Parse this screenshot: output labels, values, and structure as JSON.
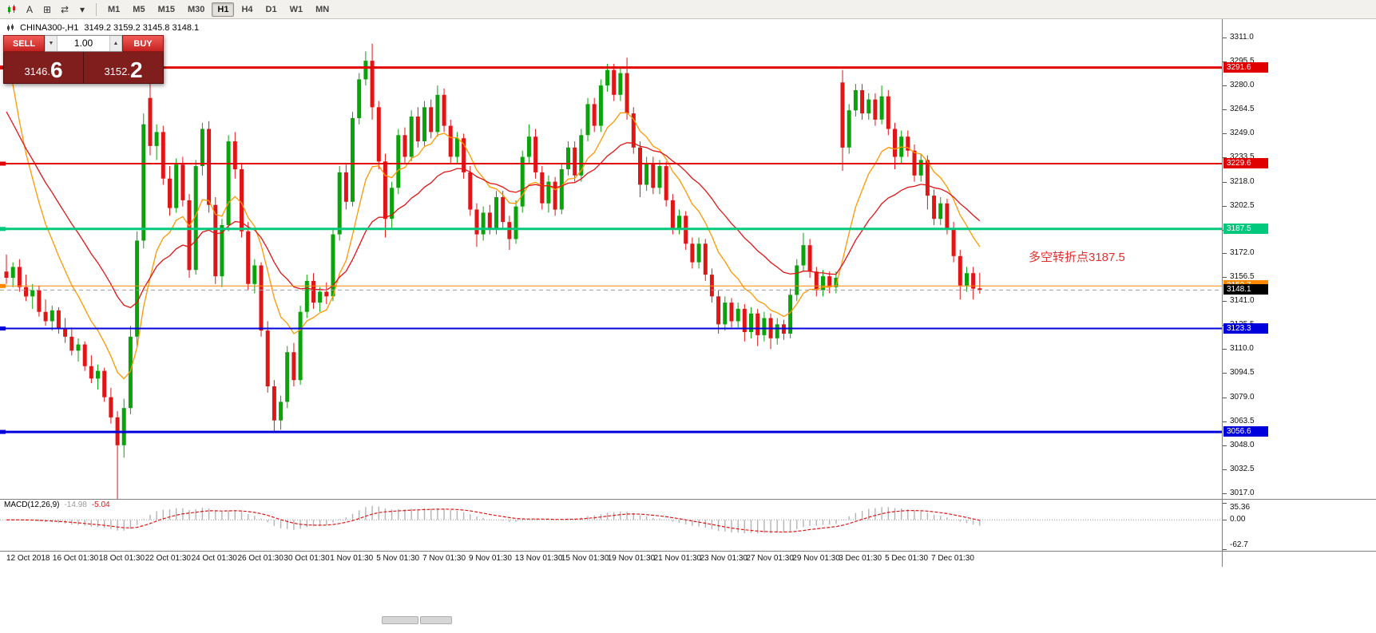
{
  "toolbar": {
    "icons": [
      {
        "name": "new-chart-icon",
        "type": "candles"
      },
      {
        "name": "text-tool-icon",
        "glyph": "A"
      },
      {
        "name": "grid-icon",
        "glyph": "⊞"
      },
      {
        "name": "cycle-icon",
        "glyph": "⇄"
      },
      {
        "name": "dropdown-arrow-icon",
        "glyph": "▾"
      }
    ],
    "timeframes": [
      {
        "label": "M1",
        "active": false
      },
      {
        "label": "M5",
        "active": false
      },
      {
        "label": "M15",
        "active": false
      },
      {
        "label": "M30",
        "active": false
      },
      {
        "label": "H1",
        "active": true
      },
      {
        "label": "H4",
        "active": false
      },
      {
        "label": "D1",
        "active": false
      },
      {
        "label": "W1",
        "active": false
      },
      {
        "label": "MN",
        "active": false
      }
    ]
  },
  "chart": {
    "header": {
      "symbol_period": "CHINA300-,H1",
      "ohlc": "3149.2 3159.2 3145.8 3148.1"
    },
    "trade_panel": {
      "sell_label": "SELL",
      "buy_label": "BUY",
      "volume": "1.00",
      "volume_down_glyph": "▼",
      "volume_up_glyph": "▲",
      "sell_price_main": "3146.",
      "sell_price_pip": "6",
      "buy_price_main": "3152.",
      "buy_price_pip": "2",
      "panel_color": "#801d1d",
      "button_color": "#c42222"
    },
    "annotation": {
      "text": "多空转折点3187.5",
      "color": "#e03030"
    },
    "price_axis": {
      "ticks": [
        "3311.0",
        "3295.5",
        "3280.0",
        "3264.5",
        "3249.0",
        "3233.5",
        "3218.0",
        "3202.5",
        "3187.0",
        "3172.0",
        "3156.5",
        "3141.0",
        "3125.5",
        "3110.0",
        "3094.5",
        "3079.0",
        "3063.5",
        "3048.0",
        "3032.5",
        "3017.0"
      ]
    },
    "hlines": [
      {
        "name": "resistance-line-upper",
        "price": 3291.6,
        "color": "#e00000",
        "width": 3,
        "badge": "3291.6"
      },
      {
        "name": "resistance-line-lower",
        "price": 3229.6,
        "color": "#e00000",
        "width": 2,
        "badge": "3229.6"
      },
      {
        "name": "pivot-line-green",
        "price": 3187.5,
        "color": "#00c87d",
        "width": 3,
        "badge": "3187.5"
      },
      {
        "name": "level-line-orange",
        "price": 3150.7,
        "color": "#ff8800",
        "width": 1,
        "badge": "3150.7"
      },
      {
        "name": "support-line-upper",
        "price": 3123.3,
        "color": "#0000dd",
        "width": 2,
        "badge": "3123.3"
      },
      {
        "name": "support-line-lower",
        "price": 3056.6,
        "color": "#0000dd",
        "width": 3,
        "badge": "3056.6"
      },
      {
        "name": "bid-price-line",
        "price": 3148.1,
        "color": "#a0a0a0",
        "width": 1,
        "style": "dashed",
        "badge": "3148.1",
        "badge_color": "#000000"
      }
    ],
    "time_axis": {
      "labels": [
        "12 Oct 2018",
        "16 Oct 01:30",
        "18 Oct 01:30",
        "22 Oct 01:30",
        "24 Oct 01:30",
        "26 Oct 01:30",
        "30 Oct 01:30",
        "1 Nov 01:30",
        "5 Nov 01:30",
        "7 Nov 01:30",
        "9 Nov 01:30",
        "13 Nov 01:30",
        "15 Nov 01:30",
        "19 Nov 01:30",
        "21 Nov 01:30",
        "23 Nov 01:30",
        "27 Nov 01:30",
        "29 Nov 01:30",
        "3 Dec 01:30",
        "5 Dec 01:30",
        "7 Dec 01:30"
      ]
    }
  },
  "macd": {
    "title": "MACD(12,26,9)",
    "value": "-14.98",
    "signal": "-5.04",
    "axis_ticks": [
      "35.36",
      "0.00",
      "-62.7"
    ],
    "histogram_color": "#b4b4b4",
    "signal_color": "#e01515"
  },
  "chart_data": {
    "type": "candlestick",
    "symbol": "CHINA300-",
    "period": "H1",
    "last_ohlc": {
      "open": 3149.2,
      "high": 3159.2,
      "low": 3145.8,
      "close": 3148.1
    },
    "y_axis_range": [
      3013.4,
      3322.8
    ],
    "up_color": "#0aa30a",
    "down_color": "#e01515",
    "candles": [
      [
        3160,
        3171,
        3152,
        3156
      ],
      [
        3156,
        3166,
        3150,
        3163
      ],
      [
        3163,
        3168,
        3147,
        3150
      ],
      [
        3150,
        3158,
        3141,
        3144
      ],
      [
        3144,
        3152,
        3136,
        3148
      ],
      [
        3148,
        3151,
        3131,
        3134
      ],
      [
        3134,
        3142,
        3125,
        3128
      ],
      [
        3128,
        3138,
        3122,
        3135
      ],
      [
        3135,
        3137,
        3120,
        3123
      ],
      [
        3123,
        3130,
        3114,
        3118
      ],
      [
        3118,
        3124,
        3106,
        3109
      ],
      [
        3109,
        3117,
        3102,
        3113
      ],
      [
        3113,
        3115,
        3096,
        3099
      ],
      [
        3099,
        3106,
        3088,
        3091
      ],
      [
        3091,
        3100,
        3084,
        3096
      ],
      [
        3096,
        3098,
        3076,
        3079
      ],
      [
        3079,
        3085,
        3062,
        3066
      ],
      [
        3066,
        3070,
        3012,
        3048
      ],
      [
        3048,
        3078,
        3040,
        3072
      ],
      [
        3072,
        3125,
        3068,
        3118
      ],
      [
        3118,
        3186,
        3112,
        3180
      ],
      [
        3180,
        3262,
        3175,
        3255
      ],
      [
        3272,
        3288,
        3235,
        3241
      ],
      [
        3241,
        3255,
        3232,
        3250
      ],
      [
        3250,
        3254,
        3216,
        3220
      ],
      [
        3220,
        3228,
        3196,
        3201
      ],
      [
        3201,
        3233,
        3198,
        3229
      ],
      [
        3229,
        3234,
        3202,
        3206
      ],
      [
        3206,
        3210,
        3156,
        3161
      ],
      [
        3161,
        3232,
        3158,
        3228
      ],
      [
        3228,
        3256,
        3222,
        3252
      ],
      [
        3252,
        3257,
        3198,
        3203
      ],
      [
        3203,
        3208,
        3152,
        3157
      ],
      [
        3157,
        3194,
        3150,
        3190
      ],
      [
        3190,
        3248,
        3186,
        3244
      ],
      [
        3244,
        3250,
        3220,
        3226
      ],
      [
        3226,
        3230,
        3182,
        3186
      ],
      [
        3186,
        3192,
        3148,
        3152
      ],
      [
        3152,
        3168,
        3146,
        3164
      ],
      [
        3164,
        3166,
        3118,
        3122
      ],
      [
        3122,
        3128,
        3082,
        3086
      ],
      [
        3086,
        3090,
        3056,
        3064
      ],
      [
        3064,
        3080,
        3058,
        3076
      ],
      [
        3076,
        3112,
        3072,
        3108
      ],
      [
        3108,
        3114,
        3086,
        3090
      ],
      [
        3090,
        3138,
        3087,
        3134
      ],
      [
        3134,
        3158,
        3130,
        3154
      ],
      [
        3154,
        3159,
        3136,
        3140
      ],
      [
        3140,
        3150,
        3134,
        3147
      ],
      [
        3147,
        3153,
        3139,
        3144
      ],
      [
        3144,
        3188,
        3141,
        3184
      ],
      [
        3184,
        3228,
        3180,
        3224
      ],
      [
        3224,
        3229,
        3200,
        3205
      ],
      [
        3205,
        3263,
        3202,
        3259
      ],
      [
        3259,
        3288,
        3255,
        3284
      ],
      [
        3284,
        3302,
        3280,
        3296
      ],
      [
        3296,
        3307,
        3258,
        3266
      ],
      [
        3266,
        3270,
        3226,
        3231
      ],
      [
        3231,
        3236,
        3182,
        3194
      ],
      [
        3194,
        3218,
        3188,
        3214
      ],
      [
        3214,
        3252,
        3210,
        3248
      ],
      [
        3248,
        3253,
        3230,
        3234
      ],
      [
        3234,
        3264,
        3231,
        3260
      ],
      [
        3260,
        3266,
        3240,
        3244
      ],
      [
        3244,
        3270,
        3241,
        3266
      ],
      [
        3266,
        3271,
        3246,
        3250
      ],
      [
        3250,
        3280,
        3247,
        3274
      ],
      [
        3274,
        3278,
        3250,
        3254
      ],
      [
        3254,
        3258,
        3230,
        3234
      ],
      [
        3234,
        3250,
        3230,
        3246
      ],
      [
        3246,
        3249,
        3220,
        3224
      ],
      [
        3224,
        3228,
        3196,
        3200
      ],
      [
        3200,
        3204,
        3176,
        3184
      ],
      [
        3184,
        3202,
        3180,
        3198
      ],
      [
        3198,
        3203,
        3184,
        3188
      ],
      [
        3188,
        3212,
        3184,
        3208
      ],
      [
        3208,
        3212,
        3188,
        3192
      ],
      [
        3192,
        3196,
        3174,
        3181
      ],
      [
        3181,
        3206,
        3178,
        3202
      ],
      [
        3202,
        3238,
        3198,
        3234
      ],
      [
        3234,
        3255,
        3230,
        3247
      ],
      [
        3247,
        3252,
        3220,
        3224
      ],
      [
        3224,
        3228,
        3200,
        3204
      ],
      [
        3204,
        3222,
        3198,
        3218
      ],
      [
        3218,
        3221,
        3196,
        3200
      ],
      [
        3200,
        3230,
        3197,
        3226
      ],
      [
        3226,
        3244,
        3222,
        3240
      ],
      [
        3240,
        3244,
        3218,
        3222
      ],
      [
        3222,
        3252,
        3218,
        3248
      ],
      [
        3248,
        3272,
        3244,
        3268
      ],
      [
        3268,
        3272,
        3250,
        3254
      ],
      [
        3254,
        3284,
        3250,
        3280
      ],
      [
        3280,
        3294,
        3276,
        3290
      ],
      [
        3290,
        3294,
        3270,
        3274
      ],
      [
        3274,
        3292,
        3270,
        3288
      ],
      [
        3288,
        3298,
        3258,
        3262
      ],
      [
        3262,
        3266,
        3236,
        3240
      ],
      [
        3240,
        3244,
        3208,
        3216
      ],
      [
        3216,
        3234,
        3212,
        3230
      ],
      [
        3230,
        3234,
        3210,
        3214
      ],
      [
        3214,
        3232,
        3210,
        3228
      ],
      [
        3228,
        3231,
        3202,
        3206
      ],
      [
        3206,
        3210,
        3184,
        3188
      ],
      [
        3188,
        3200,
        3184,
        3196
      ],
      [
        3196,
        3199,
        3174,
        3178
      ],
      [
        3178,
        3182,
        3162,
        3166
      ],
      [
        3166,
        3182,
        3162,
        3178
      ],
      [
        3178,
        3181,
        3154,
        3158
      ],
      [
        3158,
        3162,
        3140,
        3144
      ],
      [
        3144,
        3148,
        3120,
        3126
      ],
      [
        3126,
        3144,
        3122,
        3140
      ],
      [
        3140,
        3143,
        3124,
        3128
      ],
      [
        3128,
        3140,
        3124,
        3136
      ],
      [
        3136,
        3139,
        3115,
        3121
      ],
      [
        3121,
        3137,
        3117,
        3133
      ],
      [
        3133,
        3136,
        3112,
        3119
      ],
      [
        3119,
        3134,
        3115,
        3130
      ],
      [
        3130,
        3133,
        3110,
        3117
      ],
      [
        3117,
        3130,
        3113,
        3126
      ],
      [
        3126,
        3129,
        3116,
        3120
      ],
      [
        3120,
        3149,
        3117,
        3145
      ],
      [
        3145,
        3168,
        3141,
        3164
      ],
      [
        3164,
        3185,
        3160,
        3177
      ],
      [
        3177,
        3181,
        3156,
        3160
      ],
      [
        3160,
        3163,
        3144,
        3148
      ],
      [
        3148,
        3161,
        3144,
        3157
      ],
      [
        3157,
        3160,
        3146,
        3150
      ],
      [
        3150,
        3160,
        3146,
        3156
      ],
      [
        3282,
        3290,
        3225,
        3240
      ],
      [
        3240,
        3268,
        3236,
        3264
      ],
      [
        3264,
        3281,
        3260,
        3277
      ],
      [
        3277,
        3281,
        3258,
        3262
      ],
      [
        3262,
        3275,
        3258,
        3271
      ],
      [
        3271,
        3275,
        3254,
        3258
      ],
      [
        3258,
        3280,
        3255,
        3273
      ],
      [
        3273,
        3277,
        3248,
        3252
      ],
      [
        3252,
        3256,
        3226,
        3234
      ],
      [
        3234,
        3251,
        3230,
        3247
      ],
      [
        3247,
        3251,
        3234,
        3238
      ],
      [
        3238,
        3242,
        3218,
        3222
      ],
      [
        3222,
        3236,
        3218,
        3232
      ],
      [
        3232,
        3235,
        3200,
        3209
      ],
      [
        3209,
        3213,
        3190,
        3194
      ],
      [
        3194,
        3208,
        3190,
        3204
      ],
      [
        3204,
        3207,
        3184,
        3188
      ],
      [
        3188,
        3192,
        3166,
        3170
      ],
      [
        3170,
        3174,
        3142,
        3151
      ],
      [
        3151,
        3163,
        3147,
        3159
      ],
      [
        3159,
        3163,
        3142,
        3149
      ],
      [
        3149.2,
        3159.2,
        3145.8,
        3148.1
      ]
    ],
    "overlays": [
      {
        "name": "ma-fast-orange",
        "period": 10,
        "seed": 3340,
        "color": "#ff9800"
      },
      {
        "name": "ma-slow-red",
        "period": 25,
        "seed": 3272,
        "color": "#e01515"
      }
    ],
    "indicator": {
      "name": "MACD",
      "params": [
        12,
        26,
        9
      ],
      "display_values": [
        -14.98,
        -5.04
      ],
      "scale": [
        -62.7,
        35.36
      ]
    }
  }
}
